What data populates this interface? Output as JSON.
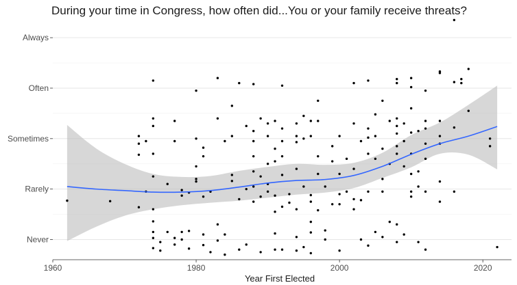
{
  "chart_data": {
    "type": "scatter",
    "title": "During your time in Congress, how often did...You or your family receive threats?",
    "xlabel": "Year First Elected",
    "ylabel": "",
    "xlim": [
      1960,
      2024
    ],
    "ylim": [
      0.6,
      5.3
    ],
    "x_ticks": [
      1960,
      1980,
      2000,
      2020
    ],
    "y_ticks": [
      {
        "value": 1,
        "label": "Never"
      },
      {
        "value": 2,
        "label": "Rarely"
      },
      {
        "value": 3,
        "label": "Sometimes"
      },
      {
        "value": 4,
        "label": "Often"
      },
      {
        "value": 5,
        "label": "Always"
      }
    ],
    "grid": true,
    "smooth_color": "#3366ff",
    "band_color": "#bdbdbd",
    "point_color": "#000000",
    "smooth": [
      [
        1962,
        2.05
      ],
      [
        1966,
        2.0
      ],
      [
        1970,
        1.97
      ],
      [
        1974,
        1.94
      ],
      [
        1978,
        1.94
      ],
      [
        1982,
        1.97
      ],
      [
        1986,
        2.04
      ],
      [
        1990,
        2.12
      ],
      [
        1994,
        2.17
      ],
      [
        1998,
        2.19
      ],
      [
        2002,
        2.27
      ],
      [
        2006,
        2.45
      ],
      [
        2010,
        2.69
      ],
      [
        2014,
        2.9
      ],
      [
        2018,
        3.05
      ],
      [
        2022,
        3.24
      ]
    ],
    "band_upper": [
      [
        1962,
        3.27
      ],
      [
        1966,
        2.81
      ],
      [
        1970,
        2.5
      ],
      [
        1974,
        2.3
      ],
      [
        1978,
        2.24
      ],
      [
        1982,
        2.26
      ],
      [
        1986,
        2.36
      ],
      [
        1990,
        2.44
      ],
      [
        1994,
        2.5
      ],
      [
        1998,
        2.48
      ],
      [
        2002,
        2.52
      ],
      [
        2006,
        2.72
      ],
      [
        2010,
        3.07
      ],
      [
        2014,
        3.32
      ],
      [
        2018,
        3.67
      ],
      [
        2022,
        4.05
      ]
    ],
    "band_lower": [
      [
        1962,
        0.97
      ],
      [
        1966,
        1.25
      ],
      [
        1970,
        1.47
      ],
      [
        1974,
        1.6
      ],
      [
        1978,
        1.68
      ],
      [
        1982,
        1.73
      ],
      [
        1986,
        1.77
      ],
      [
        1990,
        1.83
      ],
      [
        1994,
        1.89
      ],
      [
        1998,
        1.93
      ],
      [
        2002,
        2.02
      ],
      [
        2006,
        2.22
      ],
      [
        2010,
        2.43
      ],
      [
        2014,
        2.7
      ],
      [
        2018,
        2.68
      ],
      [
        2022,
        2.39
      ]
    ],
    "points": [
      [
        1962,
        1.77
      ],
      [
        1968,
        1.76
      ],
      [
        1972,
        2.9
      ],
      [
        1972,
        3.05
      ],
      [
        1972,
        2.68
      ],
      [
        1972,
        1.64
      ],
      [
        1973,
        1.95
      ],
      [
        1973,
        2.95
      ],
      [
        1974,
        4.15
      ],
      [
        1974,
        3.4
      ],
      [
        1974,
        3.25
      ],
      [
        1974,
        2.7
      ],
      [
        1974,
        2.25
      ],
      [
        1974,
        1.6
      ],
      [
        1974,
        1.36
      ],
      [
        1974,
        1.15
      ],
      [
        1974,
        1.03
      ],
      [
        1974,
        0.83
      ],
      [
        1975,
        0.95
      ],
      [
        1975,
        0.78
      ],
      [
        1976,
        1.15
      ],
      [
        1976,
        2.1
      ],
      [
        1977,
        3.35
      ],
      [
        1977,
        2.95
      ],
      [
        1977,
        1.03
      ],
      [
        1977,
        0.9
      ],
      [
        1978,
        1.0
      ],
      [
        1978,
        1.15
      ],
      [
        1978,
        1.87
      ],
      [
        1978,
        1.98
      ],
      [
        1979,
        1.93
      ],
      [
        1979,
        0.82
      ],
      [
        1979,
        1.17
      ],
      [
        1980,
        2.15
      ],
      [
        1980,
        3.0
      ],
      [
        1980,
        3.95
      ],
      [
        1980,
        2.45
      ],
      [
        1980,
        2.2
      ],
      [
        1981,
        1.85
      ],
      [
        1981,
        1.1
      ],
      [
        1981,
        0.89
      ],
      [
        1981,
        2.82
      ],
      [
        1981,
        2.65
      ],
      [
        1982,
        0.75
      ],
      [
        1982,
        1.95
      ],
      [
        1983,
        3.4
      ],
      [
        1983,
        4.2
      ],
      [
        1983,
        1.3
      ],
      [
        1983,
        0.98
      ],
      [
        1984,
        2.95
      ],
      [
        1984,
        1.1
      ],
      [
        1984,
        0.7
      ],
      [
        1985,
        2.28
      ],
      [
        1985,
        2.16
      ],
      [
        1985,
        3.05
      ],
      [
        1985,
        3.65
      ],
      [
        1986,
        4.1
      ],
      [
        1986,
        1.8
      ],
      [
        1986,
        0.8
      ],
      [
        1987,
        3.25
      ],
      [
        1987,
        2.0
      ],
      [
        1987,
        0.9
      ],
      [
        1988,
        2.35
      ],
      [
        1988,
        4.08
      ],
      [
        1988,
        1.75
      ],
      [
        1988,
        2.05
      ],
      [
        1988,
        2.95
      ],
      [
        1988,
        2.65
      ],
      [
        1988,
        3.15
      ],
      [
        1989,
        2.25
      ],
      [
        1989,
        3.4
      ],
      [
        1989,
        1.85
      ],
      [
        1989,
        0.75
      ],
      [
        1990,
        2.5
      ],
      [
        1990,
        3.3
      ],
      [
        1990,
        2.1
      ],
      [
        1990,
        1.95
      ],
      [
        1990,
        3.05
      ],
      [
        1991,
        1.87
      ],
      [
        1991,
        2.8
      ],
      [
        1991,
        3.35
      ],
      [
        1991,
        2.55
      ],
      [
        1991,
        1.55
      ],
      [
        1991,
        0.8
      ],
      [
        1991,
        1.12
      ],
      [
        1992,
        4.05
      ],
      [
        1992,
        2.65
      ],
      [
        1992,
        3.2
      ],
      [
        1992,
        2.95
      ],
      [
        1992,
        2.28
      ],
      [
        1992,
        1.65
      ],
      [
        1992,
        0.8
      ],
      [
        1993,
        1.9
      ],
      [
        1993,
        1.73
      ],
      [
        1994,
        2.4
      ],
      [
        1994,
        2.93
      ],
      [
        1994,
        3.05
      ],
      [
        1994,
        3.3
      ],
      [
        1994,
        1.6
      ],
      [
        1994,
        1.05
      ],
      [
        1994,
        0.78
      ],
      [
        1995,
        2.05
      ],
      [
        1995,
        3.45
      ],
      [
        1995,
        3.0
      ],
      [
        1995,
        0.85
      ],
      [
        1996,
        3.35
      ],
      [
        1996,
        1.88
      ],
      [
        1996,
        1.75
      ],
      [
        1996,
        3.05
      ],
      [
        1996,
        1.35
      ],
      [
        1996,
        1.14
      ],
      [
        1996,
        0.73
      ],
      [
        1997,
        3.75
      ],
      [
        1997,
        2.3
      ],
      [
        1997,
        2.65
      ],
      [
        1997,
        3.35
      ],
      [
        1997,
        1.58
      ],
      [
        1998,
        2.05
      ],
      [
        1998,
        1.0
      ],
      [
        1998,
        1.18
      ],
      [
        1999,
        2.85
      ],
      [
        1999,
        2.55
      ],
      [
        1999,
        1.7
      ],
      [
        2000,
        3.05
      ],
      [
        2000,
        2.3
      ],
      [
        2000,
        1.9
      ],
      [
        2000,
        0.78
      ],
      [
        2000,
        1.7
      ],
      [
        2001,
        2.6
      ],
      [
        2001,
        1.95
      ],
      [
        2002,
        3.3
      ],
      [
        2002,
        4.1
      ],
      [
        2002,
        2.4
      ],
      [
        2002,
        1.8
      ],
      [
        2002,
        1.6
      ],
      [
        2003,
        2.95
      ],
      [
        2003,
        1.78
      ],
      [
        2003,
        1.0
      ],
      [
        2004,
        4.15
      ],
      [
        2004,
        3.2
      ],
      [
        2004,
        2.7
      ],
      [
        2004,
        3.02
      ],
      [
        2004,
        1.95
      ],
      [
        2004,
        0.88
      ],
      [
        2005,
        2.6
      ],
      [
        2005,
        3.05
      ],
      [
        2005,
        3.48
      ],
      [
        2005,
        1.15
      ],
      [
        2006,
        3.75
      ],
      [
        2006,
        2.2
      ],
      [
        2006,
        1.95
      ],
      [
        2006,
        1.05
      ],
      [
        2006,
        2.8
      ],
      [
        2007,
        3.35
      ],
      [
        2007,
        1.35
      ],
      [
        2007,
        2.5
      ],
      [
        2008,
        4.1
      ],
      [
        2008,
        4.18
      ],
      [
        2008,
        3.4
      ],
      [
        2008,
        3.25
      ],
      [
        2008,
        3.1
      ],
      [
        2008,
        2.85
      ],
      [
        2008,
        2.7
      ],
      [
        2008,
        1.3
      ],
      [
        2008,
        0.95
      ],
      [
        2009,
        3.3
      ],
      [
        2009,
        2.95
      ],
      [
        2009,
        2.45
      ],
      [
        2009,
        1.1
      ],
      [
        2010,
        4.2
      ],
      [
        2010,
        4.02
      ],
      [
        2010,
        3.6
      ],
      [
        2010,
        3.12
      ],
      [
        2010,
        2.7
      ],
      [
        2010,
        2.3
      ],
      [
        2010,
        1.85
      ],
      [
        2010,
        1.95
      ],
      [
        2011,
        3.15
      ],
      [
        2011,
        2.35
      ],
      [
        2011,
        2.05
      ],
      [
        2011,
        0.95
      ],
      [
        2012,
        3.95
      ],
      [
        2012,
        3.35
      ],
      [
        2012,
        3.2
      ],
      [
        2012,
        2.9
      ],
      [
        2012,
        2.6
      ],
      [
        2012,
        1.95
      ],
      [
        2012,
        0.8
      ],
      [
        2014,
        4.3
      ],
      [
        2014,
        4.33
      ],
      [
        2014,
        3.35
      ],
      [
        2014,
        3.05
      ],
      [
        2014,
        2.9
      ],
      [
        2014,
        2.15
      ],
      [
        2014,
        1.75
      ],
      [
        2016,
        5.35
      ],
      [
        2016,
        3.22
      ],
      [
        2016,
        4.12
      ],
      [
        2016,
        1.95
      ],
      [
        2017,
        4.18
      ],
      [
        2017,
        4.1
      ],
      [
        2018,
        4.38
      ],
      [
        2018,
        3.55
      ],
      [
        2021,
        3.0
      ],
      [
        2021,
        2.85
      ],
      [
        2022,
        0.85
      ]
    ]
  }
}
